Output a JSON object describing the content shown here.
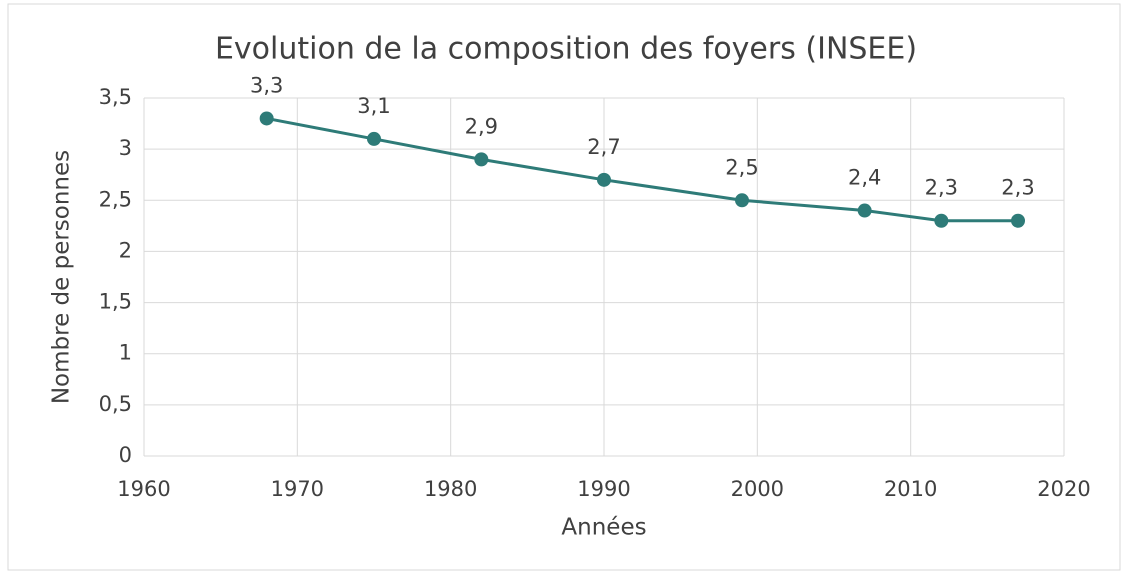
{
  "chart_data": {
    "type": "line",
    "title": "Evolution de la composition des foyers (INSEE)",
    "xlabel": "Années",
    "ylabel": "Nombre de personnes",
    "x": [
      1968,
      1975,
      1982,
      1990,
      1999,
      2007,
      2012,
      2017
    ],
    "values": [
      3.3,
      3.1,
      2.9,
      2.7,
      2.5,
      2.4,
      2.3,
      2.3
    ],
    "value_labels": [
      "3,3",
      "3,1",
      "2,9",
      "2,7",
      "2,5",
      "2,4",
      "2,3",
      "2,3"
    ],
    "color": "#2e7b78",
    "xlim": [
      1960,
      2020
    ],
    "xticks": [
      1960,
      1970,
      1980,
      1990,
      2000,
      2010,
      2020
    ],
    "ylim": [
      0,
      3.5
    ],
    "yticks": [
      0,
      {
        "value": 0.5,
        "label": "0,5"
      },
      1,
      {
        "value": 1.5,
        "label": "1,5"
      },
      2,
      {
        "value": 2.5,
        "label": "2,5"
      },
      3,
      {
        "value": 3.5,
        "label": "3,5"
      }
    ],
    "grid": true
  }
}
